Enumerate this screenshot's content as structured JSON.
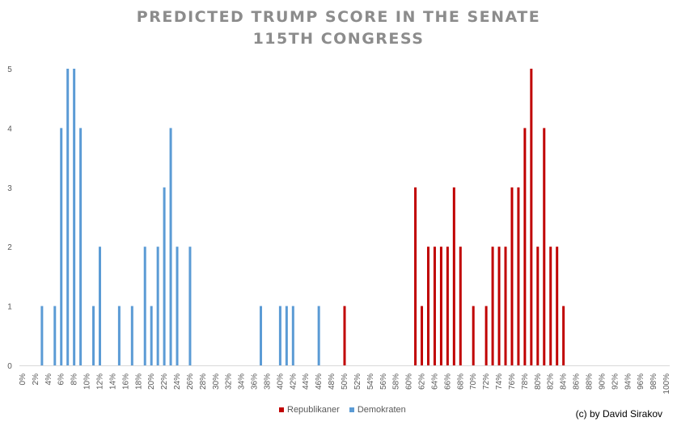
{
  "title_line1": "PREDICTED TRUMP SCORE IN THE SENATE",
  "title_line2": "115TH CONGRESS",
  "credit": "(c) by David Sirakov",
  "colors": {
    "Republikaner": "#c00000",
    "Demokraten": "#5b9bd5"
  },
  "chart_data": {
    "type": "bar",
    "title": "PREDICTED TRUMP SCORE IN THE SENATE 115TH CONGRESS",
    "xlabel": "",
    "ylabel": "",
    "ylim": [
      0,
      5
    ],
    "yticks": [
      0,
      1,
      2,
      3,
      4,
      5
    ],
    "xticks": [
      "0%",
      "2%",
      "4%",
      "6%",
      "8%",
      "10%",
      "12%",
      "14%",
      "16%",
      "18%",
      "20%",
      "22%",
      "24%",
      "26%",
      "28%",
      "30%",
      "32%",
      "34%",
      "36%",
      "38%",
      "40%",
      "42%",
      "44%",
      "46%",
      "48%",
      "50%",
      "52%",
      "54%",
      "56%",
      "58%",
      "60%",
      "62%",
      "64%",
      "66%",
      "68%",
      "70%",
      "72%",
      "74%",
      "76%",
      "78%",
      "80%",
      "82%",
      "84%",
      "86%",
      "88%",
      "90%",
      "92%",
      "94%",
      "96%",
      "98%",
      "100%"
    ],
    "grid": false,
    "legend_position": "bottom",
    "series": [
      {
        "name": "Demokraten",
        "color": "#5b9bd5",
        "x": [
          3,
          5,
          6,
          7,
          8,
          9,
          11,
          12,
          15,
          17,
          19,
          20,
          21,
          22,
          23,
          24,
          26,
          37,
          40,
          41,
          42,
          46
        ],
        "values": [
          1,
          1,
          4,
          5,
          5,
          4,
          1,
          2,
          1,
          1,
          2,
          1,
          2,
          3,
          4,
          2,
          2,
          1,
          1,
          1,
          1,
          1
        ]
      },
      {
        "name": "Republikaner",
        "color": "#c00000",
        "x": [
          50,
          61,
          62,
          63,
          64,
          65,
          66,
          67,
          68,
          70,
          72,
          73,
          74,
          75,
          76,
          77,
          78,
          79,
          80,
          81,
          82,
          83,
          84
        ],
        "values": [
          1,
          3,
          1,
          2,
          2,
          2,
          2,
          3,
          2,
          1,
          1,
          2,
          2,
          2,
          3,
          3,
          4,
          5,
          2,
          4,
          2,
          2,
          1
        ]
      }
    ]
  }
}
